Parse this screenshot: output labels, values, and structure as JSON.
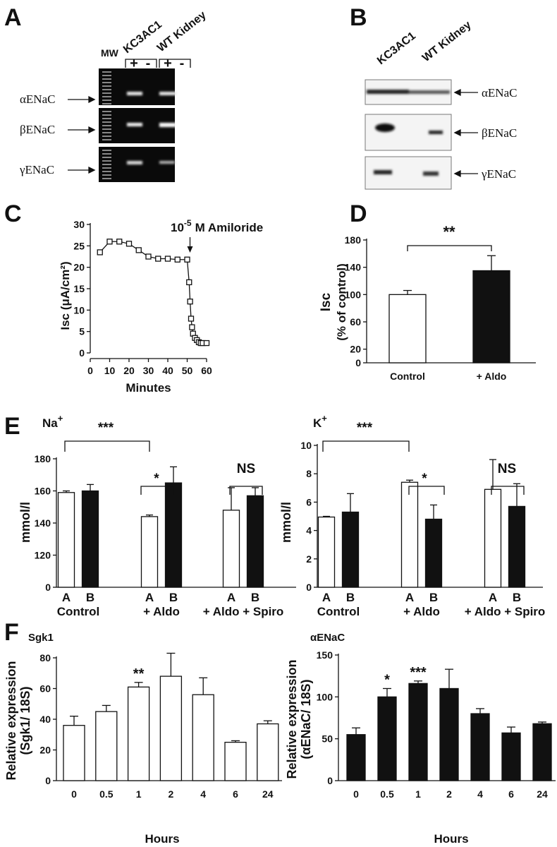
{
  "panels": [
    "A",
    "B",
    "C",
    "D",
    "E",
    "F"
  ],
  "blot_a": {
    "marker": "MW",
    "lanes": [
      "KC3AC1",
      "WT Kidney"
    ],
    "signs": [
      "+",
      "-",
      "+",
      "-"
    ],
    "genes": [
      "αENaC",
      "βENaC",
      "γENaC"
    ]
  },
  "blot_b": {
    "lanes": [
      "KC3AC1",
      "WT Kidney"
    ],
    "genes": [
      "αENaC",
      "βENaC",
      "γENaC"
    ]
  },
  "chart_data": [
    {
      "type": "line",
      "xlabel": "Minutes",
      "ylabel": "Isc (μA/cm²)",
      "annotation": {
        "text": "10",
        "sup": "-5",
        "rest": "M Amiloride"
      },
      "x": [
        5,
        10,
        15,
        20,
        25,
        30,
        35,
        40,
        45,
        50,
        51,
        51.5,
        52,
        52.5,
        53,
        54,
        55,
        56,
        57,
        58,
        60
      ],
      "values": [
        23.5,
        26,
        26,
        25.5,
        24,
        22.5,
        22,
        22,
        21.8,
        21.8,
        16.5,
        12,
        8,
        6,
        4.5,
        3.5,
        3,
        2.5,
        2.3,
        2.3,
        2.3
      ],
      "color": "#111111",
      "xlim": [
        0,
        60
      ],
      "xticks": [
        0,
        10,
        20,
        30,
        40,
        50,
        60
      ],
      "ylim": [
        0,
        30
      ],
      "yticks": [
        0,
        5,
        10,
        15,
        20,
        25,
        30
      ]
    },
    {
      "type": "bar",
      "ylabel": [
        "Isc",
        "(% of control)"
      ],
      "categories": [
        "Control",
        "+ Aldo"
      ],
      "values": [
        100,
        135
      ],
      "errors": [
        6,
        22
      ],
      "colors": [
        "#ffffff",
        "#111111"
      ],
      "annotations": [
        "**"
      ],
      "ylim": [
        0,
        180
      ],
      "yticks": [
        0,
        20,
        60,
        100,
        140,
        180
      ]
    },
    {
      "type": "grouped_bar",
      "title": {
        "text": "Na",
        "sup": "+"
      },
      "ylabel": "mmol/l",
      "categories": [
        "Control",
        "+ Aldo",
        "+ Aldo + Spiro"
      ],
      "series": [
        {
          "name": "A",
          "color": "#ffffff",
          "values": [
            159,
            144,
            148
          ],
          "errors": [
            1,
            1,
            14
          ]
        },
        {
          "name": "B",
          "color": "#111111",
          "values": [
            160,
            165,
            157
          ],
          "errors": [
            4,
            10,
            5
          ]
        }
      ],
      "annotations": [
        "***",
        "*",
        "NS"
      ],
      "ylim": [
        100,
        180
      ],
      "yticks": [
        {
          "value": 100,
          "label": "0"
        },
        120,
        140,
        160,
        180
      ]
    },
    {
      "type": "grouped_bar",
      "title": {
        "text": "K",
        "sup": "+"
      },
      "ylabel": "mmol/l",
      "categories": [
        "Control",
        "+ Aldo",
        "+ Aldo + Spiro"
      ],
      "series": [
        {
          "name": "A",
          "color": "#ffffff",
          "values": [
            4.95,
            7.4,
            6.9
          ],
          "errors": [
            0.05,
            0.15,
            2.1
          ]
        },
        {
          "name": "B",
          "color": "#111111",
          "values": [
            5.3,
            4.8,
            5.7
          ],
          "errors": [
            1.3,
            1.0,
            1.6
          ]
        }
      ],
      "annotations": [
        "***",
        "*",
        "NS"
      ],
      "ylim": [
        0,
        10
      ],
      "yticks": [
        0,
        2,
        4,
        6,
        8,
        10
      ]
    },
    {
      "type": "bar",
      "title": "Sgk1",
      "xlabel": "Hours",
      "ylabel": [
        "Relative expression",
        "(Sgk1/ 18S)"
      ],
      "categories": [
        "0",
        "0.5",
        "1",
        "2",
        "4",
        "6",
        "24"
      ],
      "values": [
        36,
        45,
        61,
        68,
        56,
        25,
        37
      ],
      "errors": [
        6,
        4,
        3,
        15,
        11,
        1,
        2
      ],
      "color": "#ffffff",
      "annotations": [
        "**"
      ],
      "ylim": [
        0,
        80
      ],
      "yticks": [
        0,
        20,
        40,
        60,
        80
      ]
    },
    {
      "type": "bar",
      "title": "αENaC",
      "xlabel": "Hours",
      "ylabel": [
        "Relative expression",
        "(αENaC/ 18S)"
      ],
      "categories": [
        "0",
        "0.5",
        "1",
        "2",
        "4",
        "6",
        "24"
      ],
      "values": [
        55,
        100,
        116,
        110,
        80,
        57,
        68
      ],
      "errors": [
        8,
        10,
        3,
        23,
        6,
        7,
        2
      ],
      "color": "#111111",
      "annotations": [
        "*",
        "***"
      ],
      "ylim": [
        0,
        150
      ],
      "yticks": [
        0,
        50,
        100,
        150
      ]
    }
  ]
}
